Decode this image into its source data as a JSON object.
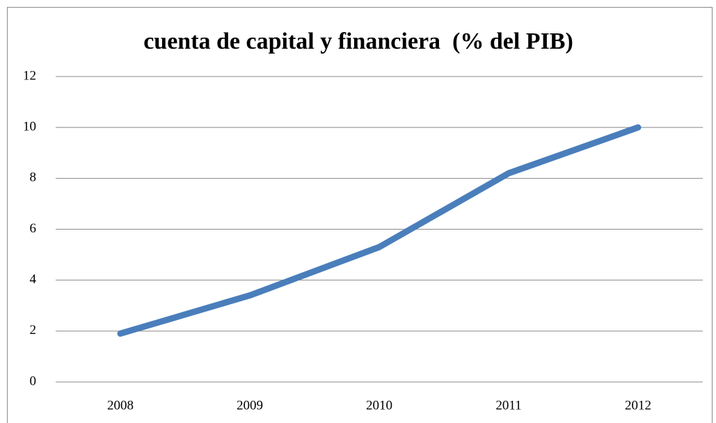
{
  "chart_data": {
    "type": "line",
    "title": "cuenta de capital y financiera  (% del PIB)",
    "categories": [
      "2008",
      "2009",
      "2010",
      "2011",
      "2012"
    ],
    "values": [
      1.9,
      3.4,
      5.3,
      8.2,
      10.0
    ],
    "color": "#4a7ebb",
    "ylim": [
      0,
      12
    ],
    "yticks": [
      0,
      2,
      4,
      6,
      8,
      10,
      12
    ],
    "grid": true
  }
}
